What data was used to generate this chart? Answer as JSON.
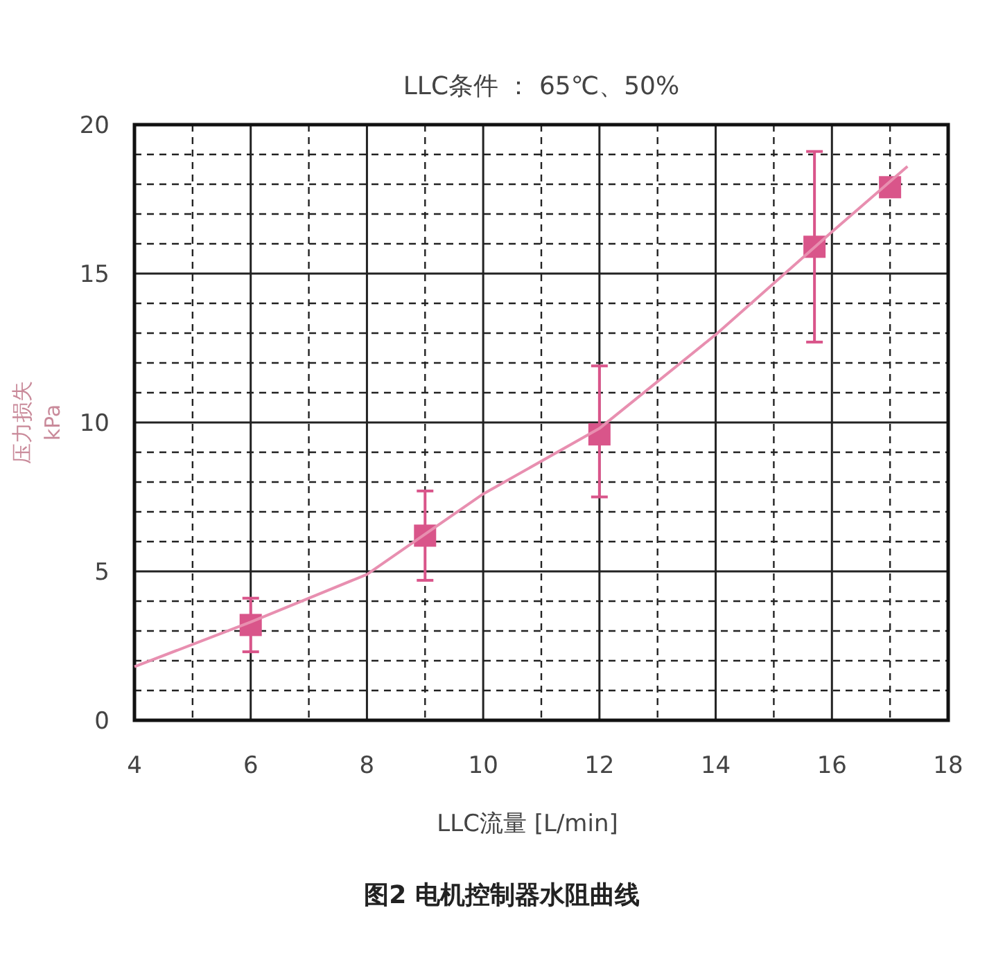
{
  "chart_data": {
    "type": "scatter",
    "title": "LLC条件 ： 65℃、50%",
    "xlabel": "LLC流量 [L/min]",
    "ylabel": "压力损失\nkPa",
    "annotations": [
      "图2 电机控制器水阻曲线"
    ],
    "xlim": [
      4,
      18
    ],
    "xticks": [
      4,
      6,
      8,
      10,
      12,
      14,
      16,
      18
    ],
    "ylim": [
      0,
      20
    ],
    "yticks": [
      0,
      5,
      10,
      15,
      20
    ],
    "grid": true,
    "series": [
      {
        "color": "#d9558a",
        "marker": "square",
        "x": [
          6,
          9,
          12,
          15.7,
          17
        ],
        "values": [
          3.2,
          6.2,
          9.6,
          15.9,
          17.9
        ],
        "errors": [
          [
            2.3,
            4.1
          ],
          [
            4.7,
            7.7
          ],
          [
            7.5,
            11.9
          ],
          [
            12.7,
            19.1
          ],
          null
        ]
      },
      {
        "type": "line",
        "color": "#e88fb0",
        "line_style": "solid",
        "x": [
          4,
          6,
          8,
          10,
          12,
          14,
          16,
          17.3
        ],
        "values": [
          1.8,
          3.3,
          4.9,
          7.6,
          9.8,
          12.95,
          16.4,
          18.6
        ]
      }
    ]
  }
}
